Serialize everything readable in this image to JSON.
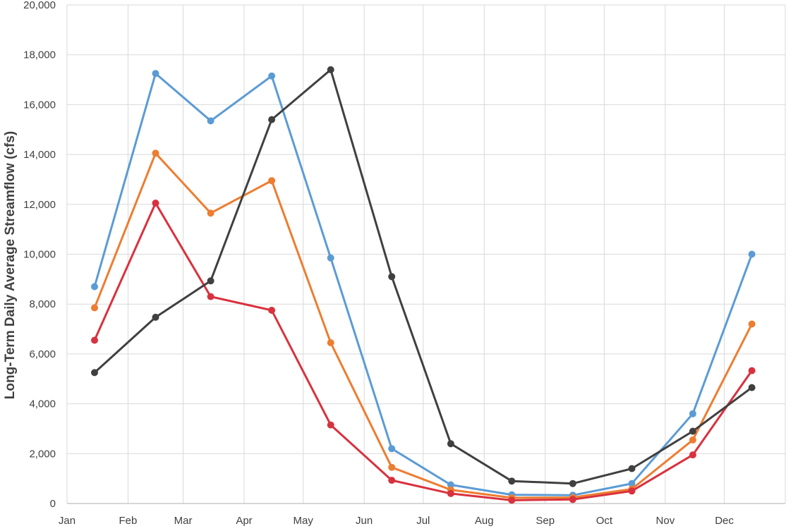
{
  "chart_data": {
    "type": "line",
    "title": "",
    "xlabel": "",
    "ylabel": "Long-Term Daily Average Streamflow (cfs)",
    "ylim": [
      0,
      20000
    ],
    "y_ticks": [
      0,
      2000,
      4000,
      6000,
      8000,
      10000,
      12000,
      14000,
      16000,
      18000,
      20000
    ],
    "y_tick_labels": [
      "0",
      "2,000",
      "4,000",
      "6,000",
      "8,000",
      "10,000",
      "12,000",
      "14,000",
      "16,000",
      "18,000",
      "20,000"
    ],
    "x_tick_labels": [
      "Jan",
      "Feb",
      "Mar",
      "Apr",
      "May",
      "Jun",
      "Jul",
      "Aug",
      "Sep",
      "Oct",
      "Nov",
      "Dec"
    ],
    "x_date_range": [
      "Jan 1",
      "Dec 31"
    ],
    "grid": true,
    "legend": "none",
    "x": [
      "Jan 15",
      "Feb 15",
      "Mar 15",
      "Apr 15",
      "May 15",
      "Jun 15",
      "Jul 15",
      "Aug 15",
      "Sep 15",
      "Oct 15",
      "Nov 15",
      "Dec 15"
    ],
    "series": [
      {
        "color": "#5B9BD5",
        "values": [
          8700,
          17250,
          15350,
          17150,
          9850,
          2200,
          750,
          350,
          330,
          800,
          3600,
          10000
        ]
      },
      {
        "color": "#ED7D31",
        "values": [
          7850,
          14050,
          11650,
          12950,
          6450,
          1450,
          550,
          230,
          240,
          580,
          2550,
          7200
        ]
      },
      {
        "color": "#D9313E",
        "values": [
          6550,
          12050,
          8300,
          7750,
          3150,
          930,
          400,
          130,
          160,
          500,
          1950,
          5330
        ]
      },
      {
        "color": "#404040",
        "values": [
          5250,
          7470,
          8930,
          15400,
          17400,
          9100,
          2400,
          900,
          800,
          1400,
          2900,
          4650
        ]
      }
    ]
  }
}
